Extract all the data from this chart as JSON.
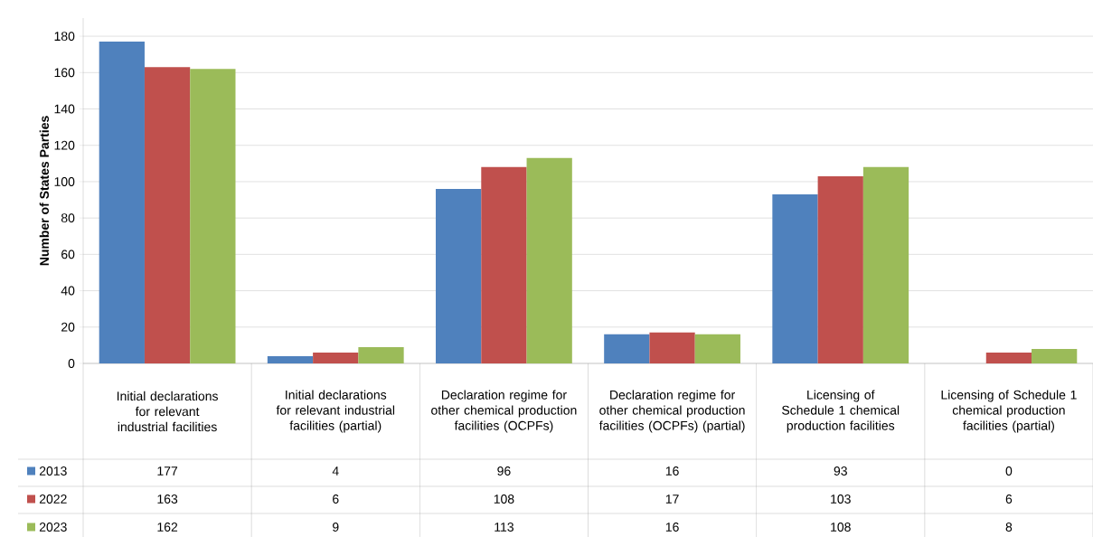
{
  "chart_data": {
    "type": "bar",
    "ylabel": "Number of States Parties",
    "categories": [
      "Initial declarations for relevant industrial facilities",
      "Initial declarations for relevant industrial facilities (partial)",
      "Declaration regime for other chemical production facilities (OCPFs)",
      "Declaration regime for other chemical production facilities (OCPFs) (partial)",
      "Licensing of Schedule 1 chemical production facilities",
      "Licensing of Schedule 1 chemical production facilities (partial)"
    ],
    "series": [
      {
        "name": "2013",
        "color": "#4f81bd",
        "values": [
          177,
          4,
          96,
          16,
          93,
          0
        ]
      },
      {
        "name": "2022",
        "color": "#c0504d",
        "values": [
          163,
          6,
          108,
          17,
          103,
          6
        ]
      },
      {
        "name": "2023",
        "color": "#9bbb59",
        "values": [
          162,
          9,
          113,
          16,
          108,
          8
        ]
      }
    ],
    "ylim": [
      0,
      190
    ],
    "yticks": [
      0,
      20,
      40,
      60,
      80,
      100,
      120,
      140,
      160,
      180
    ],
    "grid": "y",
    "data_labels": true,
    "legend": "bottom left"
  }
}
